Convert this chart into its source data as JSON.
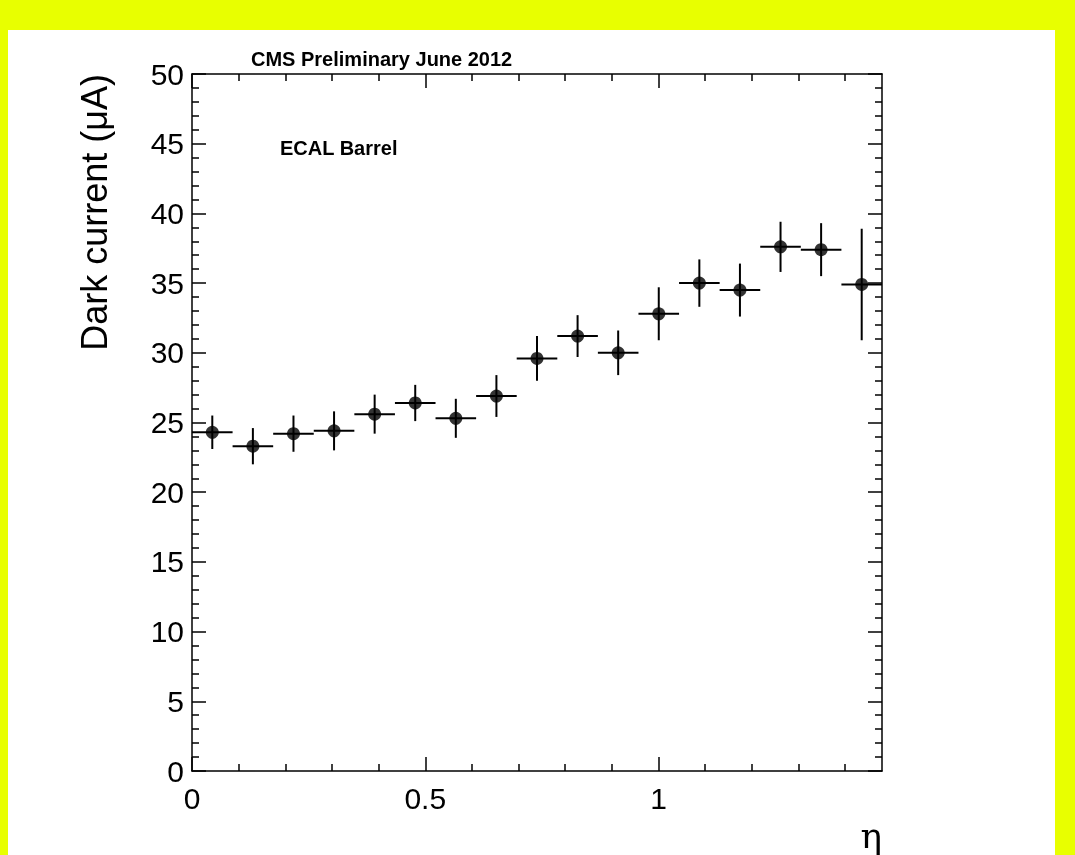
{
  "chart_data": {
    "type": "scatter",
    "title": "CMS Preliminary June 2012",
    "annotations": [
      "ECAL Barrel"
    ],
    "xlabel": "η",
    "ylabel": "Dark current (μA)",
    "x": [
      0.0435,
      0.1305,
      0.2175,
      0.3045,
      0.3915,
      0.4785,
      0.5655,
      0.6525,
      0.7395,
      0.8265,
      0.9135,
      1.0005,
      1.0875,
      1.1745,
      1.2615,
      1.3485,
      1.4355
    ],
    "values": [
      24.3,
      23.3,
      24.2,
      24.4,
      25.6,
      26.4,
      25.3,
      26.9,
      29.6,
      31.2,
      30.0,
      32.8,
      35.0,
      34.5,
      37.6,
      37.4,
      34.9
    ],
    "errors": [
      1.2,
      1.3,
      1.3,
      1.4,
      1.4,
      1.3,
      1.4,
      1.5,
      1.6,
      1.5,
      1.6,
      1.9,
      1.7,
      1.9,
      1.8,
      1.9,
      4.0
    ],
    "xerrors": [
      0.0435,
      0.0435,
      0.0435,
      0.0435,
      0.0435,
      0.0435,
      0.0435,
      0.0435,
      0.0435,
      0.0435,
      0.0435,
      0.0435,
      0.0435,
      0.0435,
      0.0435,
      0.0435,
      0.0435
    ],
    "color": "#000000",
    "marker": "circle",
    "xlim": [
      0,
      1.479
    ],
    "xticks": [
      0,
      0.5,
      1
    ],
    "ylim": [
      0,
      50
    ],
    "yticks": [
      0,
      5,
      10,
      15,
      20,
      25,
      30,
      35,
      40,
      45,
      50
    ],
    "grid": false
  }
}
